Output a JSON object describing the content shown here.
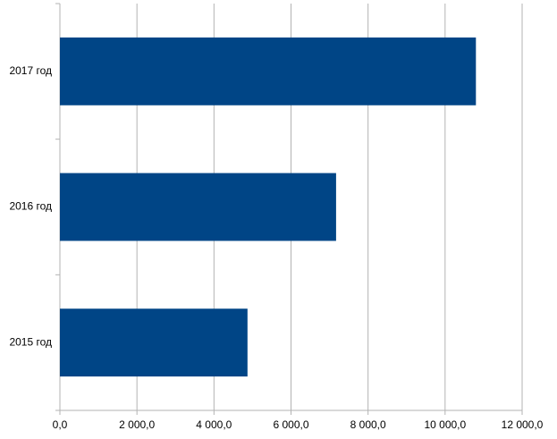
{
  "chart_data": {
    "type": "hbar",
    "categories": [
      "2015 год",
      "2016 год",
      "2017 год"
    ],
    "values": [
      4870,
      7170,
      10800
    ],
    "color": "#004586",
    "xlim": [
      0,
      12000
    ],
    "xticks": [
      {
        "value": 0,
        "label": "0,0"
      },
      {
        "value": 2000,
        "label": "2 000,0"
      },
      {
        "value": 4000,
        "label": "4 000,0"
      },
      {
        "value": 6000,
        "label": "6 000,0"
      },
      {
        "value": 8000,
        "label": "8 000,0"
      },
      {
        "value": 10000,
        "label": "10 000,0"
      },
      {
        "value": 12000,
        "label": "12 000,0"
      }
    ],
    "grid": true
  }
}
